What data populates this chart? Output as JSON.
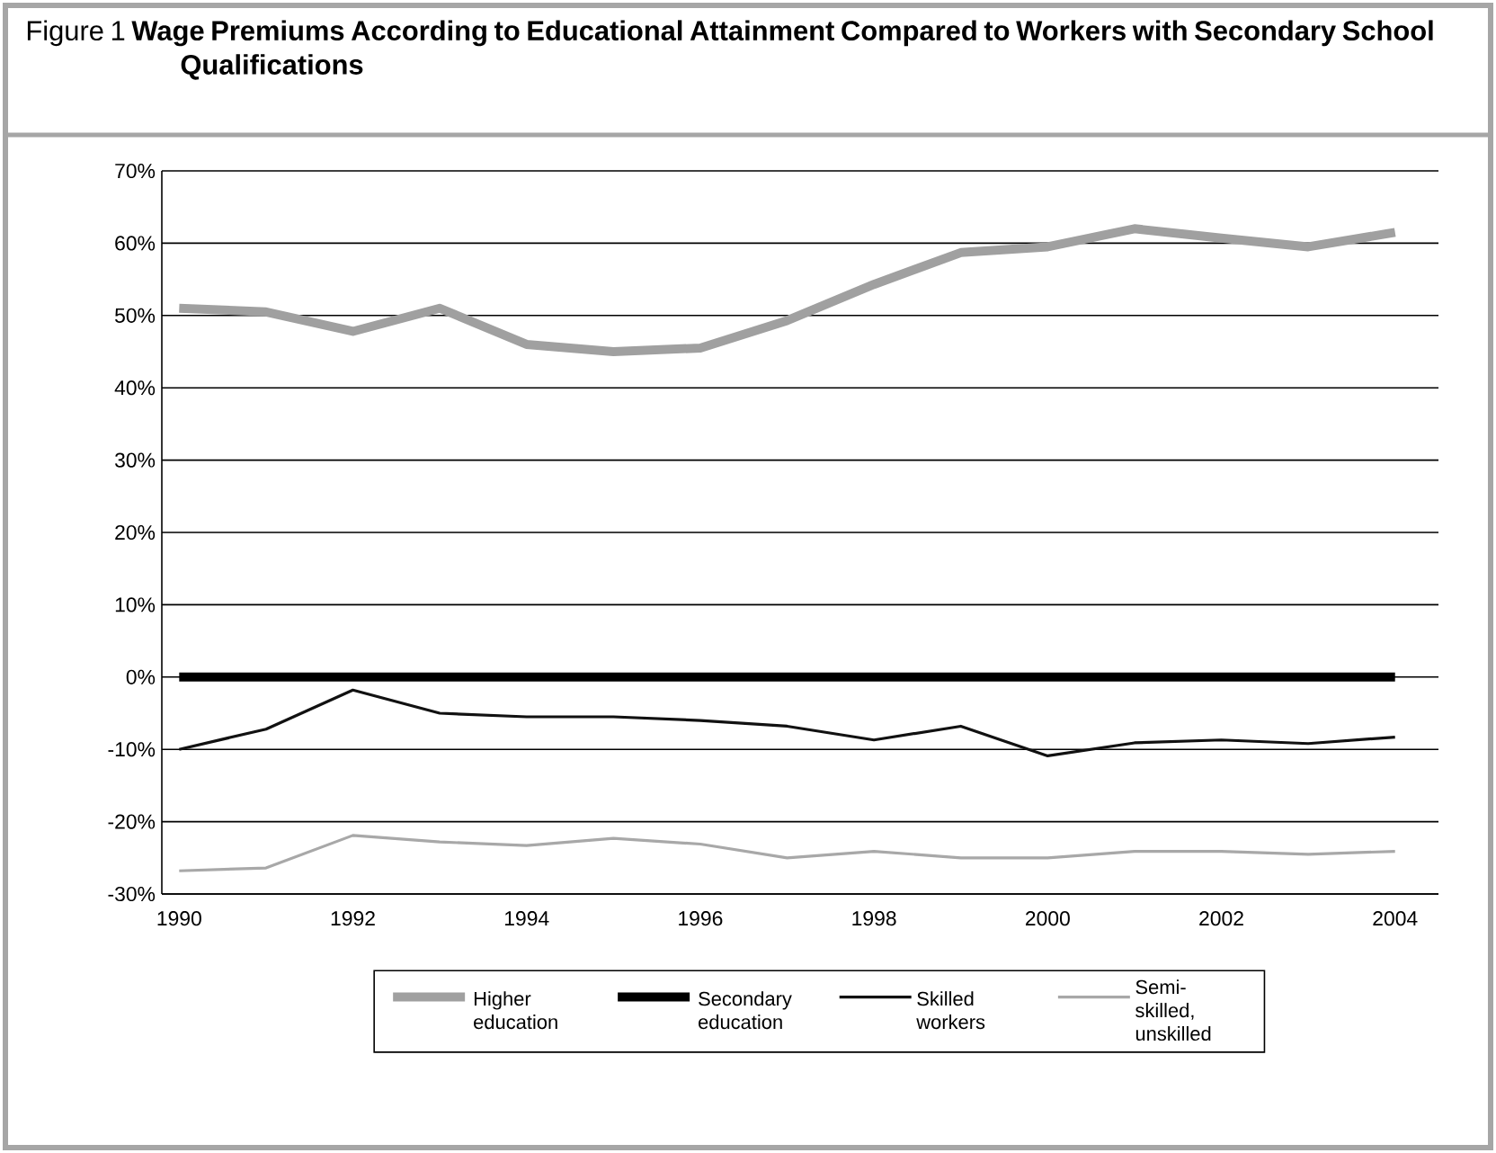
{
  "chart_data": {
    "type": "line",
    "title": "Figure 1 **Wage Premiums According to Educational Attainment Compared to Workers with Secondary School Qualifications**",
    "x": [
      1990,
      1991,
      1992,
      1993,
      1994,
      1995,
      1996,
      1997,
      1998,
      1999,
      2000,
      2001,
      2002,
      2003,
      2004
    ],
    "xlim": [
      1989.8,
      2004.5
    ],
    "xticks": [
      1990,
      1992,
      1994,
      1996,
      1998,
      2000,
      2002,
      2004
    ],
    "ylim": [
      -30,
      70
    ],
    "yticks": [
      {
        "value": -30,
        "label": "-30%"
      },
      {
        "value": -20,
        "label": "-20%"
      },
      {
        "value": -10,
        "label": "-10%"
      },
      {
        "value": 0,
        "label": "0%"
      },
      {
        "value": 10,
        "label": "10%"
      },
      {
        "value": 20,
        "label": "20%"
      },
      {
        "value": 30,
        "label": "30%"
      },
      {
        "value": 40,
        "label": "40%"
      },
      {
        "value": 50,
        "label": "50%"
      },
      {
        "value": 60,
        "label": "60%"
      },
      {
        "value": 70,
        "label": "70%"
      }
    ],
    "grid": "y",
    "legend": "bottom",
    "marker": "none",
    "line_style": "solid",
    "series": [
      {
        "name": "Higher education",
        "color": "#a0a0a0",
        "values": [
          51,
          50.5,
          47.8,
          51,
          46,
          45,
          45.5,
          49.3,
          54.3,
          58.7,
          59.5,
          62,
          60.7,
          59.5,
          61.5
        ]
      },
      {
        "name": "Secondary education",
        "color": "#000000",
        "values": [
          0,
          0,
          0,
          0,
          0,
          0,
          0,
          0,
          0,
          0,
          0,
          0,
          0,
          0,
          0
        ]
      },
      {
        "name": "Skilled workers",
        "color": "#111111",
        "values": [
          -10,
          -7.2,
          -1.8,
          -5,
          -5.5,
          -5.5,
          -6,
          -6.8,
          -8.7,
          -6.8,
          -10.9,
          -9.1,
          -8.7,
          -9.2,
          -8.3
        ]
      },
      {
        "name": "Semi-skilled, unskilled",
        "color": "#a8a8a8",
        "values": [
          -26.8,
          -26.4,
          -21.9,
          -22.8,
          -23.3,
          -22.3,
          -23.1,
          -25,
          -24.1,
          -25,
          -25,
          -24.1,
          -24.1,
          -24.5,
          -24.1
        ]
      }
    ]
  }
}
